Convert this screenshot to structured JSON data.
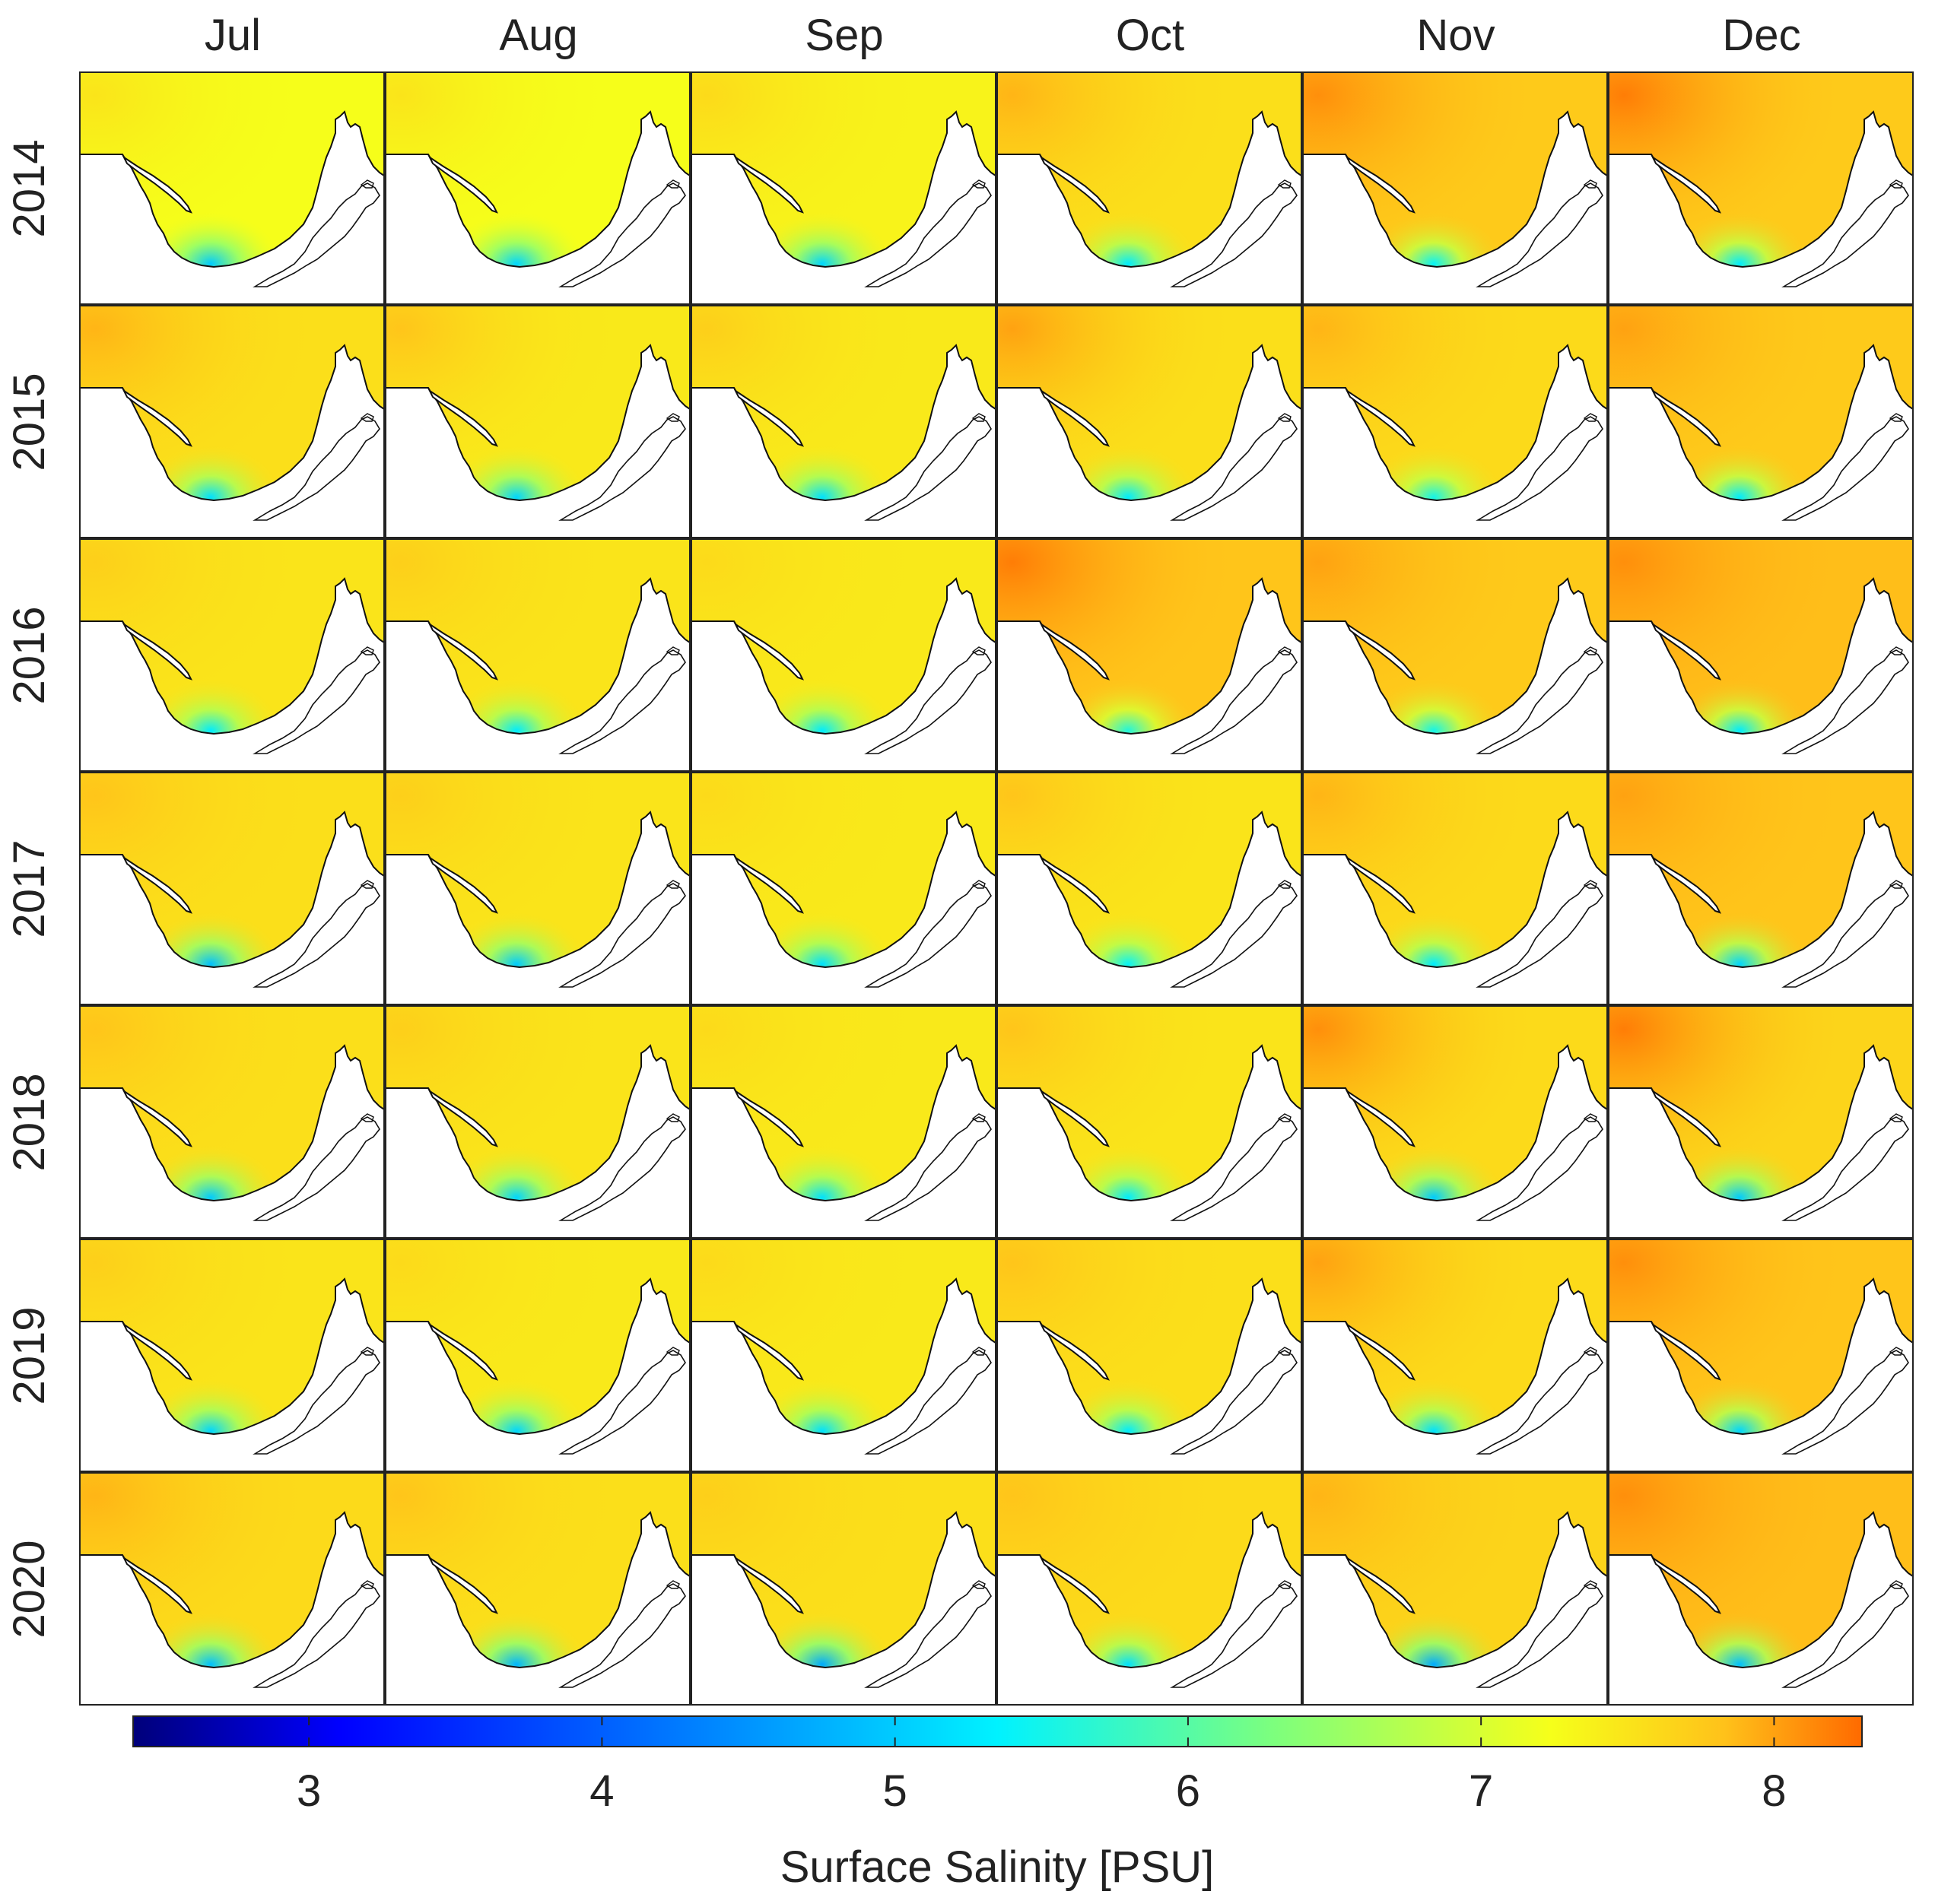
{
  "chart_data": {
    "type": "heatmap",
    "title": "",
    "variable": "Surface Salinity",
    "colorbar_label": "Surface Salinity [PSU]",
    "colorbar_range": [
      2.4,
      8.3
    ],
    "colorbar_ticks": [
      3,
      4,
      5,
      6,
      7,
      8
    ],
    "colorbar_tick_labels": [
      "3",
      "4",
      "5",
      "6",
      "7",
      "8"
    ],
    "columns": [
      "Jul",
      "Aug",
      "Sep",
      "Oct",
      "Nov",
      "Dec"
    ],
    "rows": [
      "2014",
      "2015",
      "2016",
      "2017",
      "2018",
      "2019",
      "2020"
    ],
    "background_salinity": [
      [
        7.25,
        7.25,
        7.35,
        7.55,
        7.75,
        7.75
      ],
      [
        7.55,
        7.45,
        7.45,
        7.55,
        7.6,
        7.75
      ],
      [
        7.5,
        7.5,
        7.45,
        7.8,
        7.75,
        7.85
      ],
      [
        7.55,
        7.5,
        7.45,
        7.5,
        7.6,
        7.8
      ],
      [
        7.55,
        7.5,
        7.45,
        7.5,
        7.6,
        7.65
      ],
      [
        7.5,
        7.45,
        7.45,
        7.55,
        7.6,
        7.8
      ],
      [
        7.6,
        7.55,
        7.55,
        7.6,
        7.65,
        7.85
      ]
    ],
    "northwest_max_salinity": [
      [
        7.5,
        7.5,
        7.6,
        7.9,
        8.1,
        8.2
      ],
      [
        7.9,
        7.8,
        7.7,
        8.0,
        7.9,
        8.0
      ],
      [
        7.7,
        7.7,
        7.6,
        8.2,
        8.0,
        8.1
      ],
      [
        7.8,
        7.7,
        7.6,
        7.8,
        7.9,
        8.0
      ],
      [
        7.8,
        7.7,
        7.6,
        7.8,
        8.1,
        8.2
      ],
      [
        7.7,
        7.6,
        7.6,
        7.8,
        8.0,
        8.1
      ],
      [
        7.9,
        7.8,
        7.7,
        7.8,
        7.9,
        8.1
      ]
    ],
    "river_mouth_min_salinity": [
      [
        5.0,
        5.1,
        5.1,
        5.3,
        5.4,
        5.3
      ],
      [
        5.2,
        5.1,
        5.2,
        5.3,
        5.5,
        5.3
      ],
      [
        5.3,
        5.3,
        5.3,
        5.6,
        5.5,
        5.3
      ],
      [
        4.9,
        5.0,
        5.2,
        5.4,
        5.3,
        5.1
      ],
      [
        5.0,
        5.1,
        5.2,
        5.3,
        5.0,
        5.0
      ],
      [
        5.1,
        5.1,
        5.2,
        5.3,
        5.2,
        5.1
      ],
      [
        4.9,
        4.8,
        4.7,
        5.2,
        4.7,
        4.9
      ]
    ]
  }
}
